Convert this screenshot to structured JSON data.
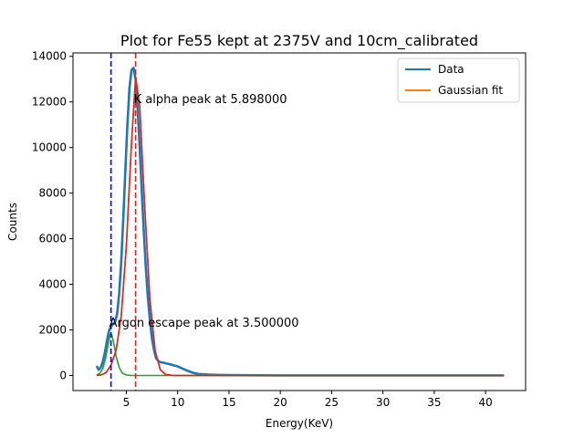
{
  "chart_data": {
    "type": "line",
    "title": "Plot for Fe55 kept at 2375V and 10cm_calibrated",
    "xlabel": "Energy(KeV)",
    "ylabel": "Counts",
    "xlim": [
      -0.2,
      43.9
    ],
    "ylim": [
      -660,
      14150
    ],
    "x_ticks": [
      5,
      10,
      15,
      20,
      25,
      30,
      35,
      40
    ],
    "y_ticks": [
      0,
      2000,
      4000,
      6000,
      8000,
      10000,
      12000,
      14000
    ],
    "grid": false,
    "legend_position": "top-right",
    "series": [
      {
        "name": "Data",
        "color": "#1f77b4",
        "x": [
          2.1,
          2.3,
          2.5,
          2.7,
          2.9,
          3.1,
          3.3,
          3.5,
          3.7,
          3.9,
          4.1,
          4.3,
          4.5,
          4.7,
          4.9,
          5.1,
          5.3,
          5.5,
          5.7,
          5.9,
          6.1,
          6.3,
          6.5,
          6.7,
          6.9,
          7.1,
          7.3,
          7.5,
          7.7,
          7.9,
          8.2,
          8.6,
          9.0,
          9.5,
          10.0,
          10.5,
          11.0,
          11.5,
          12.0,
          13.0,
          14.0,
          15.0,
          16.0,
          18.0,
          20.0,
          25.0,
          30.0,
          35.0,
          40.0,
          41.8
        ],
        "y": [
          420,
          250,
          350,
          600,
          1000,
          1500,
          1950,
          2150,
          2250,
          2350,
          2700,
          3600,
          5000,
          6900,
          9000,
          11000,
          12600,
          13400,
          13500,
          13000,
          11700,
          10000,
          8100,
          6300,
          4700,
          3400,
          2400,
          1600,
          1100,
          750,
          600,
          560,
          520,
          460,
          400,
          300,
          200,
          120,
          70,
          40,
          25,
          18,
          12,
          8,
          5,
          4,
          3,
          3,
          3,
          3
        ]
      },
      {
        "name": "Gaussian fit",
        "color": "#ff7f0e",
        "x": [
          2.1,
          2.5,
          3.0,
          3.5,
          4.0,
          4.5,
          5.0,
          5.5,
          5.9,
          6.3,
          6.8,
          7.3,
          7.8,
          8.3,
          8.8,
          9.5,
          10.5,
          12.0,
          15.0,
          20.0,
          30.0,
          41.8
        ],
        "y": [
          0,
          20,
          120,
          450,
          1100,
          2600,
          5700,
          10200,
          13100,
          11800,
          7300,
          3300,
          1100,
          260,
          50,
          5,
          0,
          0,
          0,
          0,
          0,
          0
        ]
      },
      {
        "name": "",
        "color": "#2ca02c",
        "x": [
          2.1,
          2.4,
          2.7,
          3.0,
          3.2,
          3.4,
          3.5,
          3.6,
          3.8,
          4.0,
          4.3,
          4.6,
          5.0,
          5.5,
          6.0,
          10.0,
          20.0,
          30.0,
          41.8
        ],
        "y": [
          20,
          90,
          300,
          800,
          1300,
          1750,
          1850,
          1750,
          1350,
          850,
          350,
          110,
          20,
          2,
          0,
          0,
          0,
          0,
          0
        ]
      },
      {
        "name": "",
        "color": "#d62728",
        "x": [
          2.1,
          2.5,
          3.0,
          3.5,
          4.0,
          4.5,
          5.0,
          5.5,
          5.9,
          6.3,
          6.8,
          7.3,
          7.8,
          8.3,
          8.8,
          9.5,
          10.5,
          12.0,
          15.0,
          20.0,
          30.0,
          41.8
        ],
        "y": [
          0,
          20,
          120,
          450,
          1100,
          2600,
          5700,
          10200,
          13100,
          11800,
          7300,
          3300,
          1100,
          260,
          50,
          5,
          0,
          0,
          0,
          0,
          0,
          0
        ]
      }
    ],
    "vlines": [
      {
        "x": 3.5,
        "color": "#0000ff",
        "style": "dashed"
      },
      {
        "x": 5.898,
        "color": "#d62728",
        "style": "dashed"
      }
    ],
    "annotations": [
      {
        "text": "K alpha peak at 5.898000",
        "x": 5.898,
        "y": 12100
      },
      {
        "text": "Argon escape peak at 3.500000",
        "x": 3.5,
        "y": 2300
      }
    ]
  }
}
